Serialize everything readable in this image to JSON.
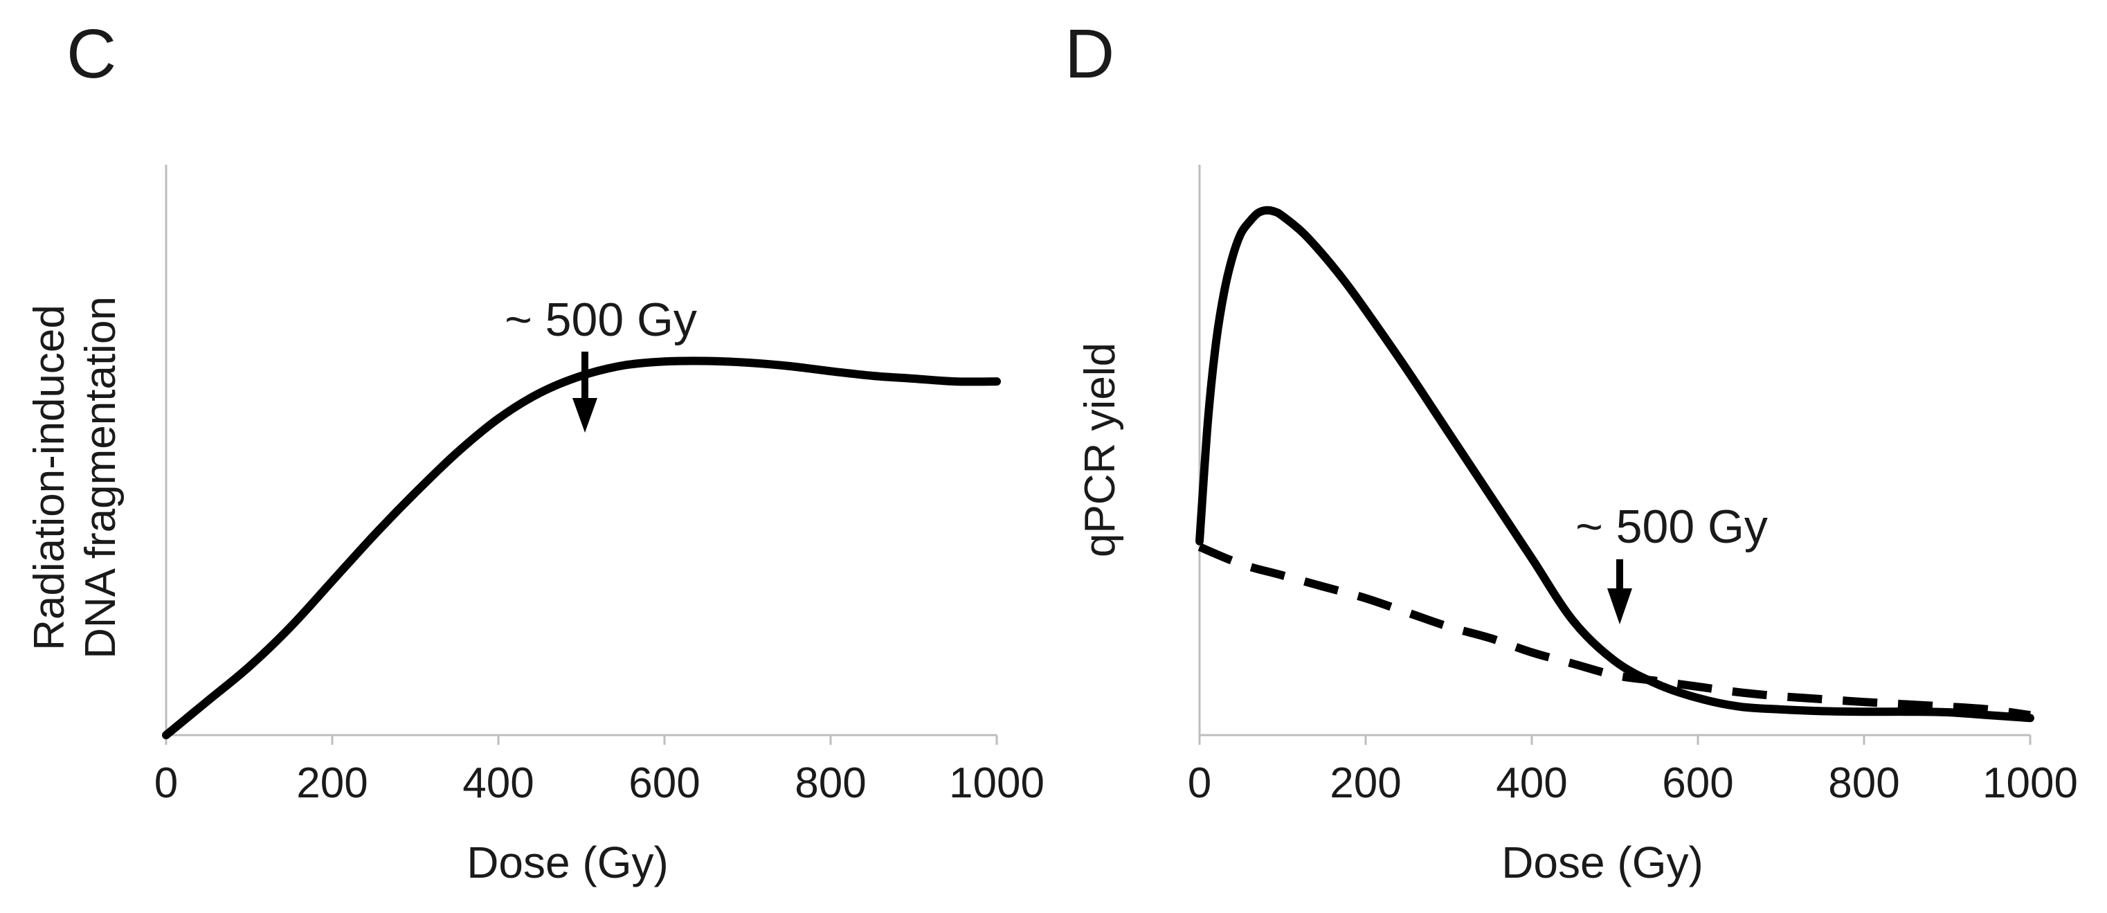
{
  "chart_data": [
    {
      "panel_label": "C",
      "type": "line",
      "title": "",
      "xlabel": "Dose (Gy)",
      "ylabel_lines": [
        "Radiation-induced",
        "DNA fragmentation"
      ],
      "xlim": [
        0,
        1000
      ],
      "ylim": [
        0,
        1
      ],
      "x_ticks": [
        0,
        200,
        400,
        600,
        800,
        1000
      ],
      "x_tick_labels": [
        "0",
        "200",
        "400",
        "600",
        "800",
        "1000"
      ],
      "y_ticks_shown": false,
      "grid": false,
      "series": [
        {
          "name": "fragmentation",
          "style": "solid",
          "x": [
            0,
            50,
            100,
            150,
            200,
            250,
            300,
            350,
            400,
            450,
            500,
            550,
            600,
            650,
            700,
            750,
            800,
            850,
            900,
            950,
            1000
          ],
          "y": [
            0.0,
            0.06,
            0.12,
            0.19,
            0.27,
            0.35,
            0.425,
            0.495,
            0.555,
            0.6,
            0.63,
            0.648,
            0.655,
            0.656,
            0.653,
            0.647,
            0.638,
            0.63,
            0.625,
            0.62,
            0.62
          ]
        }
      ],
      "annotations": [
        {
          "text": "~ 500 Gy",
          "x": 500,
          "y": 0.63,
          "arrow": true
        }
      ]
    },
    {
      "panel_label": "D",
      "type": "line",
      "title": "",
      "xlabel": "Dose (Gy)",
      "ylabel": "qPCR yield",
      "xlim": [
        0,
        1000
      ],
      "ylim": [
        0,
        1
      ],
      "x_ticks": [
        0,
        200,
        400,
        600,
        800,
        1000
      ],
      "x_tick_labels": [
        "0",
        "200",
        "400",
        "600",
        "800",
        "1000"
      ],
      "y_ticks_shown": false,
      "grid": false,
      "series": [
        {
          "name": "solid",
          "style": "solid",
          "x": [
            0,
            10,
            20,
            30,
            40,
            50,
            60,
            70,
            80,
            90,
            100,
            125,
            150,
            175,
            200,
            250,
            300,
            350,
            400,
            450,
            500,
            550,
            600,
            650,
            700,
            750,
            800,
            850,
            900,
            950,
            1000
          ],
          "y": [
            0.34,
            0.55,
            0.69,
            0.78,
            0.84,
            0.88,
            0.9,
            0.915,
            0.92,
            0.918,
            0.91,
            0.88,
            0.84,
            0.795,
            0.745,
            0.64,
            0.53,
            0.42,
            0.31,
            0.2,
            0.13,
            0.09,
            0.065,
            0.05,
            0.045,
            0.042,
            0.041,
            0.041,
            0.04,
            0.035,
            0.03
          ]
        },
        {
          "name": "dashed",
          "style": "dashed",
          "x": [
            0,
            50,
            100,
            150,
            200,
            250,
            300,
            350,
            400,
            450,
            500,
            550,
            600,
            650,
            700,
            750,
            800,
            850,
            900,
            950,
            1000
          ],
          "y": [
            0.33,
            0.3,
            0.28,
            0.26,
            0.24,
            0.215,
            0.19,
            0.17,
            0.145,
            0.125,
            0.105,
            0.095,
            0.085,
            0.075,
            0.068,
            0.063,
            0.058,
            0.054,
            0.05,
            0.045,
            0.035
          ]
        }
      ],
      "annotations": [
        {
          "text": "~ 500 Gy",
          "x": 500,
          "y": 0.17,
          "arrow": true
        }
      ]
    }
  ]
}
